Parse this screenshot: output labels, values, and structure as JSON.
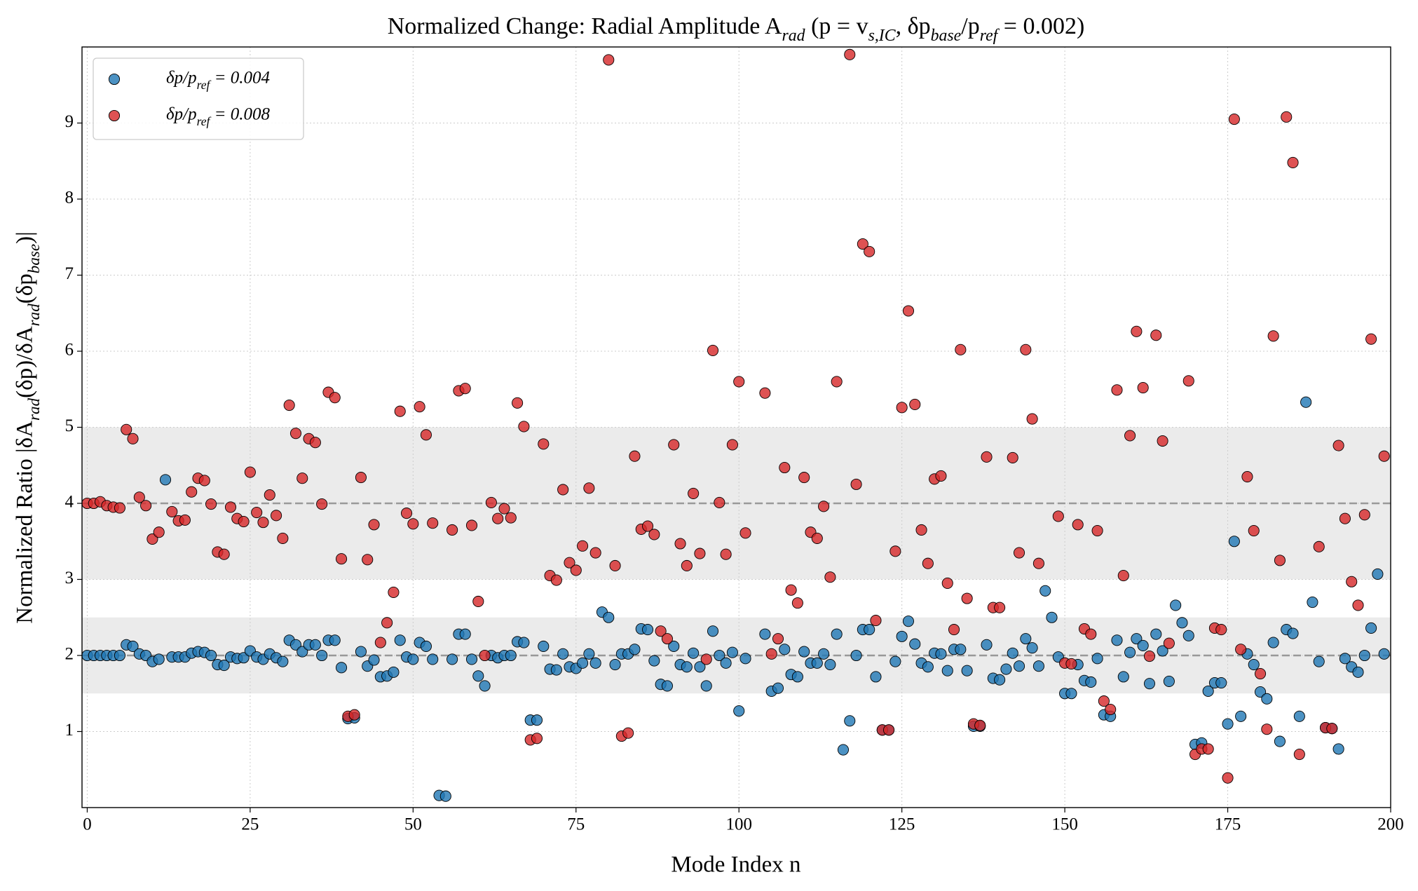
{
  "chart_data": {
    "type": "scatter",
    "title": "Normalized Change: Radial Amplitude A_{rad} (p = v_{s,IC}, δp_{base}/p_{ref} = 0.002)",
    "x_label": "Mode Index n",
    "y_label": "Normalized Ratio |δA_{rad}(δp)/δA_{rad}(δp_{base})|",
    "x": [
      0,
      1,
      2,
      3,
      4,
      5,
      6,
      7,
      8,
      9,
      10,
      11,
      12,
      13,
      14,
      15,
      16,
      17,
      18,
      19,
      20,
      21,
      22,
      23,
      24,
      25,
      26,
      27,
      28,
      29,
      30,
      31,
      32,
      33,
      34,
      35,
      36,
      37,
      38,
      39,
      40,
      41,
      42,
      43,
      44,
      45,
      46,
      47,
      48,
      49,
      50,
      51,
      52,
      53,
      54,
      55,
      56,
      57,
      58,
      59,
      60,
      61,
      62,
      63,
      64,
      65,
      66,
      67,
      68,
      69,
      70,
      71,
      72,
      73,
      74,
      75,
      76,
      77,
      78,
      79,
      80,
      81,
      82,
      83,
      84,
      85,
      86,
      87,
      88,
      89,
      90,
      91,
      92,
      93,
      94,
      95,
      96,
      97,
      98,
      99,
      100,
      101,
      102,
      103,
      104,
      105,
      106,
      107,
      108,
      109,
      110,
      111,
      112,
      113,
      114,
      115,
      116,
      117,
      118,
      119,
      120,
      121,
      122,
      123,
      124,
      125,
      126,
      127,
      128,
      129,
      130,
      131,
      132,
      133,
      134,
      135,
      136,
      137,
      138,
      139,
      140,
      141,
      142,
      143,
      144,
      145,
      146,
      147,
      148,
      149,
      150,
      151,
      152,
      153,
      154,
      155,
      156,
      157,
      158,
      159,
      160,
      161,
      162,
      163,
      164,
      165,
      166,
      167,
      168,
      169,
      170,
      171,
      172,
      173,
      174,
      175,
      176,
      177,
      178,
      179,
      180,
      181,
      182,
      183,
      184,
      185,
      186,
      187,
      188,
      189,
      190,
      191,
      192,
      193,
      194,
      195,
      196,
      197,
      198,
      199
    ],
    "series": [
      {
        "name": "δp/p_{ref} = 0.004",
        "color": "#1f77b4",
        "values": [
          2.0,
          2.0,
          2.0,
          2.0,
          2.0,
          2.0,
          2.14,
          2.12,
          2.02,
          2.0,
          1.92,
          1.95,
          4.31,
          1.98,
          1.98,
          1.98,
          2.03,
          2.05,
          2.04,
          2.0,
          1.88,
          1.87,
          1.98,
          1.96,
          1.97,
          2.06,
          1.98,
          1.95,
          2.02,
          1.97,
          1.92,
          2.2,
          2.14,
          2.05,
          2.14,
          2.14,
          2.0,
          2.2,
          2.2,
          1.84,
          1.17,
          1.18,
          2.05,
          1.86,
          1.94,
          1.72,
          1.73,
          1.78,
          2.2,
          1.98,
          1.95,
          2.17,
          2.12,
          1.95,
          0.16,
          0.15,
          1.95,
          2.28,
          2.28,
          1.95,
          1.73,
          1.6,
          2.0,
          1.97,
          2.0,
          2.0,
          2.18,
          2.17,
          1.15,
          1.15,
          2.12,
          1.82,
          1.81,
          2.02,
          1.85,
          1.83,
          1.9,
          2.02,
          1.9,
          2.57,
          2.5,
          1.88,
          2.02,
          2.02,
          2.08,
          2.35,
          2.34,
          1.93,
          1.62,
          1.6,
          2.12,
          1.88,
          1.85,
          2.03,
          1.85,
          1.6,
          2.32,
          2.0,
          1.9,
          2.04,
          1.27,
          1.96,
          null,
          null,
          2.28,
          1.53,
          1.57,
          2.08,
          1.75,
          1.72,
          2.05,
          1.9,
          1.9,
          2.02,
          1.88,
          2.28,
          0.76,
          1.14,
          2.0,
          2.34,
          2.34,
          1.72,
          1.02,
          1.02,
          1.92,
          2.25,
          2.45,
          2.15,
          1.9,
          1.85,
          2.03,
          2.02,
          1.8,
          2.08,
          2.08,
          1.8,
          1.07,
          1.07,
          2.14,
          1.7,
          1.68,
          1.82,
          2.03,
          1.86,
          2.22,
          2.1,
          1.86,
          2.85,
          2.5,
          1.98,
          1.5,
          1.5,
          1.88,
          1.67,
          1.65,
          1.96,
          1.22,
          1.2,
          2.2,
          1.72,
          2.04,
          2.22,
          2.13,
          1.63,
          2.28,
          2.06,
          1.66,
          2.66,
          2.43,
          2.26,
          0.83,
          0.85,
          1.53,
          1.64,
          1.64,
          1.1,
          3.5,
          1.2,
          2.02,
          1.88,
          1.52,
          1.43,
          2.17,
          0.87,
          2.34,
          2.29,
          1.2,
          5.33,
          2.7,
          1.92,
          1.05,
          1.04,
          0.77,
          1.96,
          1.85,
          1.78,
          2.0,
          2.36,
          3.07,
          2.02
        ]
      },
      {
        "name": "δp/p_{ref} = 0.008",
        "color": "#d62728",
        "values": [
          4.0,
          4.0,
          4.02,
          3.97,
          3.95,
          3.94,
          4.97,
          4.85,
          4.08,
          3.97,
          3.53,
          3.62,
          null,
          3.89,
          3.77,
          3.78,
          4.15,
          4.33,
          4.3,
          3.99,
          3.36,
          3.33,
          3.95,
          3.8,
          3.76,
          4.41,
          3.88,
          3.75,
          4.11,
          3.84,
          3.54,
          5.29,
          4.92,
          4.33,
          4.85,
          4.8,
          3.99,
          5.46,
          5.39,
          3.27,
          1.2,
          1.22,
          4.34,
          3.26,
          3.72,
          2.17,
          2.43,
          2.83,
          5.21,
          3.87,
          3.73,
          5.27,
          4.9,
          3.74,
          null,
          null,
          3.65,
          5.48,
          5.51,
          3.71,
          2.71,
          2.0,
          4.01,
          3.8,
          3.93,
          3.81,
          5.32,
          5.01,
          0.89,
          0.91,
          4.78,
          3.05,
          2.99,
          4.18,
          3.22,
          3.12,
          3.44,
          4.2,
          3.35,
          null,
          9.83,
          3.18,
          0.94,
          0.98,
          4.62,
          3.66,
          3.7,
          3.59,
          2.32,
          2.22,
          4.77,
          3.47,
          3.18,
          4.13,
          3.34,
          1.95,
          6.01,
          4.01,
          3.33,
          4.77,
          5.6,
          3.61,
          null,
          null,
          5.45,
          2.02,
          2.22,
          4.47,
          2.86,
          2.69,
          4.34,
          3.62,
          3.54,
          3.96,
          3.03,
          5.6,
          null,
          9.9,
          4.25,
          7.41,
          7.31,
          2.46,
          1.02,
          1.02,
          3.37,
          5.26,
          6.53,
          5.3,
          3.65,
          3.21,
          4.32,
          4.36,
          2.95,
          2.34,
          6.02,
          2.75,
          1.1,
          1.08,
          4.61,
          2.63,
          2.63,
          null,
          4.6,
          3.35,
          6.02,
          5.11,
          3.21,
          null,
          null,
          3.83,
          1.9,
          1.89,
          3.72,
          2.35,
          2.28,
          3.64,
          1.4,
          1.29,
          5.49,
          3.05,
          4.89,
          6.26,
          5.52,
          1.99,
          6.21,
          4.82,
          2.16,
          null,
          null,
          5.61,
          0.7,
          0.77,
          0.77,
          2.36,
          2.34,
          0.39,
          9.05,
          2.08,
          4.35,
          3.64,
          1.76,
          1.03,
          6.2,
          3.25,
          9.08,
          8.48,
          0.7,
          null,
          null,
          3.43,
          1.05,
          1.04,
          4.76,
          3.8,
          2.97,
          2.66,
          3.85,
          6.16,
          null,
          4.62
        ]
      }
    ],
    "xlim": [
      -0.8,
      200
    ],
    "xticks": [
      0,
      25,
      50,
      75,
      100,
      125,
      150,
      175,
      200
    ],
    "ylim": [
      0,
      10
    ],
    "yticks": [
      1,
      2,
      3,
      4,
      5,
      6,
      7,
      8,
      9
    ],
    "bands": [
      [
        1.5,
        2.5
      ],
      [
        3,
        5
      ]
    ],
    "hlines": [
      2,
      4
    ],
    "grid": true,
    "legend": "upper left"
  }
}
